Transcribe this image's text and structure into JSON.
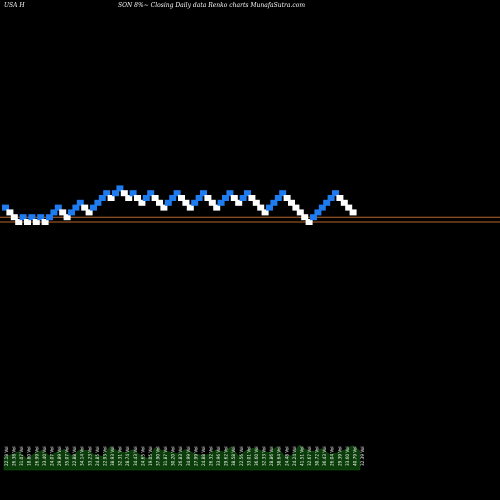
{
  "header": {
    "symbol": "USA H",
    "title": "SON  8%~  Closing Daily data  Renko  charts MunafaSutra.com"
  },
  "colors": {
    "background": "#000000",
    "up_brick": "#ffffff",
    "down_brick": "#1e7bf0",
    "reference_line": "#b5652a",
    "volume_fill": "#0b3d0b",
    "volume_label": "#ffffff"
  },
  "chart_data": {
    "type": "renko",
    "title": "SON 8%~ Closing Daily data Renko charts MunafaSutra.com",
    "brick_levels": [
      3,
      2,
      1,
      0,
      1,
      0,
      1,
      0,
      1,
      0,
      1,
      2,
      3,
      2,
      1,
      2,
      3,
      4,
      3,
      2,
      3,
      4,
      5,
      6,
      5,
      6,
      7,
      6,
      5,
      6,
      5,
      4,
      5,
      6,
      5,
      4,
      3,
      4,
      5,
      6,
      5,
      4,
      3,
      4,
      5,
      6,
      5,
      4,
      3,
      4,
      5,
      6,
      5,
      4,
      5,
      6,
      5,
      4,
      3,
      2,
      3,
      4,
      5,
      6,
      5,
      4,
      3,
      2,
      1,
      0,
      1,
      2,
      3,
      4,
      5,
      6,
      5,
      4,
      3,
      2
    ],
    "brick_directions": [
      "down",
      "up",
      "up",
      "up",
      "down",
      "up",
      "down",
      "up",
      "down",
      "up",
      "down",
      "down",
      "down",
      "up",
      "up",
      "down",
      "down",
      "down",
      "up",
      "up",
      "down",
      "down",
      "down",
      "down",
      "up",
      "down",
      "down",
      "up",
      "up",
      "down",
      "up",
      "up",
      "down",
      "down",
      "up",
      "up",
      "up",
      "down",
      "down",
      "down",
      "up",
      "up",
      "up",
      "down",
      "down",
      "down",
      "up",
      "up",
      "up",
      "down",
      "down",
      "down",
      "up",
      "up",
      "down",
      "down",
      "up",
      "up",
      "up",
      "up",
      "down",
      "down",
      "down",
      "down",
      "up",
      "up",
      "up",
      "up",
      "up",
      "up",
      "down",
      "down",
      "down",
      "down",
      "down",
      "down",
      "up",
      "up",
      "up",
      "up"
    ],
    "reference_lines": [
      0,
      1
    ],
    "volume_labels": [
      "22.18 Vol",
      "26.38 Vol",
      "31.07 Vol",
      "18.80 Vol",
      "26.99 Vol",
      "33.40 Vol",
      "24.07 Vol",
      "29.89 Vol",
      "35.07 Vol",
      "22.88 Vol",
      "34.14 Vol",
      "33.23 Vol",
      "24.85 Vol",
      "22.93 Vol",
      "38.93 Vol",
      "32.31 Vol",
      "28.74 Vol",
      "34.43 Vol",
      "24.65 Vol",
      "19.05 Vol",
      "37.90 Vol",
      "31.87 Vol",
      "30.20 Vol",
      "26.83 Vol",
      "34.99 Vol",
      "27.99 Vol",
      "24.88 Vol",
      "26.32 Vol",
      "33.96 Vol",
      "29.62 Vol",
      "38.58 Vol",
      "22.56 Vol",
      "33.01 Vol",
      "36.60 Vol",
      "32.33 Vol",
      "28.86 Vol",
      "38.64 Vol",
      "24.48 Vol",
      "24.24 Vol",
      "41.51 Vol",
      "32.67 Vol",
      "30.72 Vol",
      "36.43 Vol",
      "26.04 Vol",
      "29.39 Vol",
      "33.60 Vol",
      "40.79 Vol",
      "32.39 Vol"
    ],
    "volume_values": [
      22,
      26,
      31,
      19,
      27,
      33,
      24,
      30,
      35,
      23,
      34,
      33,
      25,
      23,
      39,
      32,
      29,
      34,
      25,
      19,
      38,
      32,
      30,
      27,
      35,
      28,
      25,
      26,
      34,
      30,
      39,
      23,
      33,
      37,
      32,
      29,
      39,
      24,
      24,
      42,
      33,
      31,
      36,
      26,
      29,
      34,
      41,
      32
    ]
  }
}
